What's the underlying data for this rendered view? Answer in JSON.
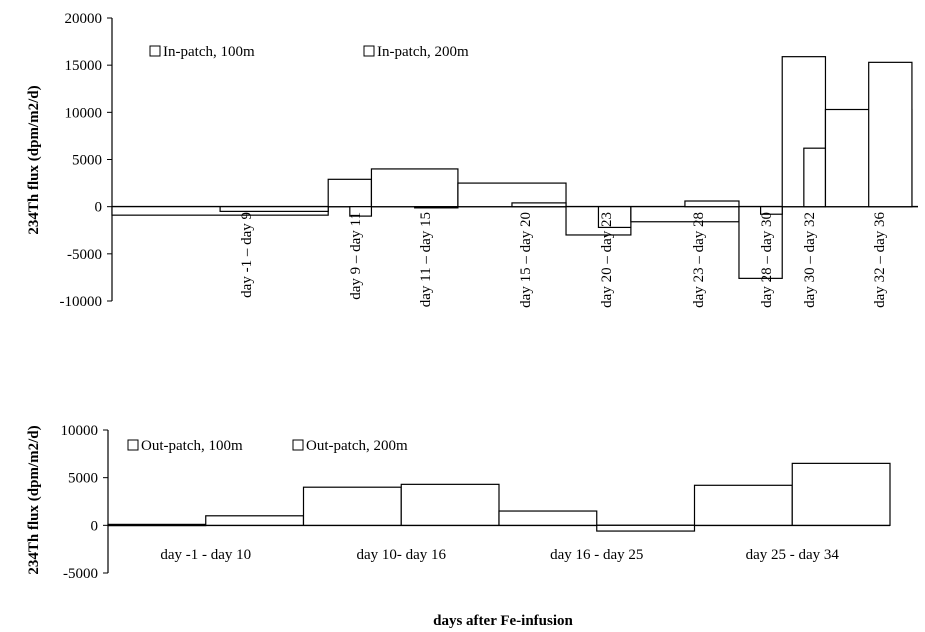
{
  "xlabel": "days after Fe-infusion",
  "chart_data": [
    {
      "type": "bar",
      "ylabel": "234Th flux (dpm/m2/d)",
      "ylim": [
        -10000,
        20000
      ],
      "yticks": [
        -10000,
        -5000,
        0,
        5000,
        10000,
        15000,
        20000
      ],
      "legend": {
        "placement": "top-left",
        "entries": [
          "In-patch, 100m",
          "In-patch, 200m"
        ]
      },
      "categories": [
        "day -1 – day 9",
        "day 9 – day 11",
        "day 11 – day 15",
        "day 15 – day 20",
        "day 20 – day 23",
        "day 23 – day 28",
        "day 28 – day 30",
        "day 30 – day 32",
        "day 32 – day 36"
      ],
      "series": [
        {
          "name": "In-patch, 100m",
          "values": [
            -900,
            2900,
            4000,
            2500,
            -3000,
            -1600,
            -7600,
            15900,
            10300
          ]
        },
        {
          "name": "In-patch, 200m",
          "values": [
            -500,
            -1000,
            0,
            400,
            -2200,
            600,
            -800,
            6200,
            15300
          ]
        }
      ],
      "day_ranges": [
        [
          -1,
          9
        ],
        [
          9,
          11
        ],
        [
          11,
          15
        ],
        [
          15,
          20
        ],
        [
          20,
          23
        ],
        [
          23,
          28
        ],
        [
          28,
          30
        ],
        [
          30,
          32
        ],
        [
          32,
          36
        ]
      ]
    },
    {
      "type": "bar",
      "ylabel": "234Th flux (dpm/m2/d)",
      "ylim": [
        -5000,
        10000
      ],
      "yticks": [
        -5000,
        0,
        5000,
        10000
      ],
      "legend": {
        "placement": "top-left",
        "entries": [
          "Out-patch, 100m",
          "Out-patch, 200m"
        ]
      },
      "categories": [
        "day -1 - day 10",
        "day 10- day 16",
        "day 16 - day 25",
        "day 25 - day 34"
      ],
      "series": [
        {
          "name": "Out-patch, 100m",
          "values": [
            100,
            4000,
            1500,
            4200
          ]
        },
        {
          "name": "Out-patch, 200m",
          "values": [
            1000,
            4300,
            -600,
            6500
          ]
        }
      ]
    }
  ]
}
